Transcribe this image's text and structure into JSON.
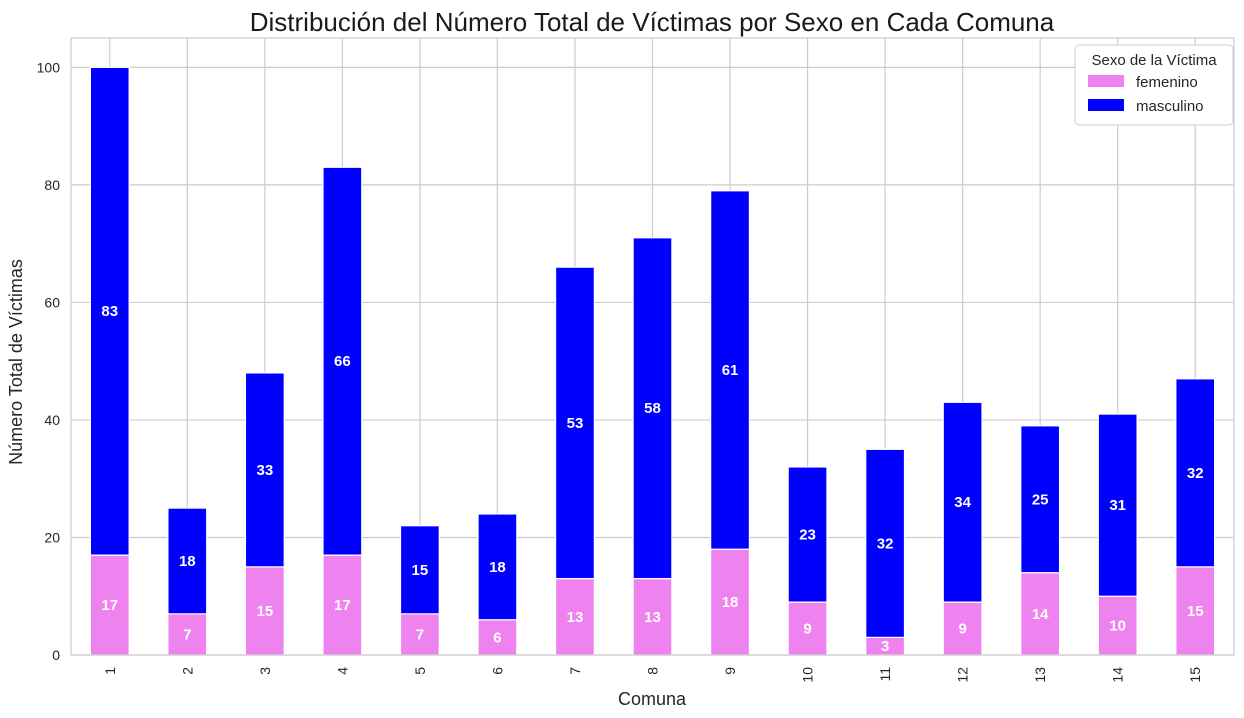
{
  "chart_data": {
    "type": "bar",
    "stacked": true,
    "title": "Distribución del Número Total de Víctimas por Sexo en Cada Comuna",
    "xlabel": "Comuna",
    "ylabel": "Número Total de Víctimas",
    "categories": [
      "1",
      "2",
      "3",
      "4",
      "5",
      "6",
      "7",
      "8",
      "9",
      "10",
      "11",
      "12",
      "13",
      "14",
      "15"
    ],
    "series": [
      {
        "name": "femenino",
        "color": "#ee82ee",
        "values": [
          17,
          7,
          15,
          17,
          7,
          6,
          13,
          13,
          18,
          9,
          3,
          9,
          14,
          10,
          15
        ]
      },
      {
        "name": "masculino",
        "color": "#0000ff",
        "values": [
          83,
          18,
          33,
          66,
          15,
          18,
          53,
          58,
          61,
          23,
          32,
          34,
          25,
          31,
          32
        ]
      }
    ],
    "ylim": [
      0,
      105
    ],
    "yticks": [
      0,
      20,
      40,
      60,
      80,
      100
    ],
    "grid": true,
    "legend": {
      "title": "Sexo de la Víctima",
      "placement": "top-right"
    }
  }
}
